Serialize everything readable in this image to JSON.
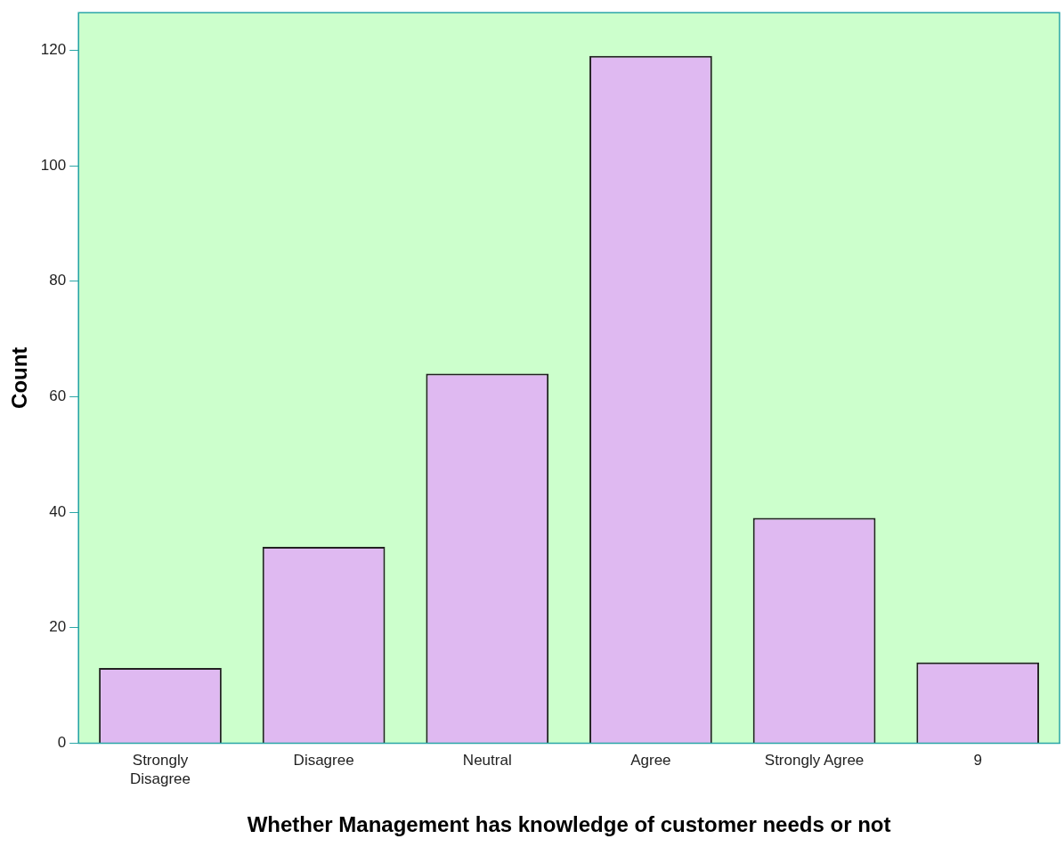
{
  "chart_data": {
    "type": "bar",
    "xlabel": "Whether Management has knowledge of customer needs or not",
    "ylabel": "Count",
    "categories": [
      "Strongly Disagree",
      "Disagree",
      "Neutral",
      "Agree",
      "Strongly Agree",
      "9"
    ],
    "values": [
      13,
      34,
      64,
      119,
      39,
      14
    ],
    "color": "#dfb9f1",
    "ylim": [
      0,
      126.5
    ],
    "yticks": [
      0,
      20,
      40,
      60,
      80,
      100,
      120
    ],
    "grid": false,
    "legend": false
  }
}
